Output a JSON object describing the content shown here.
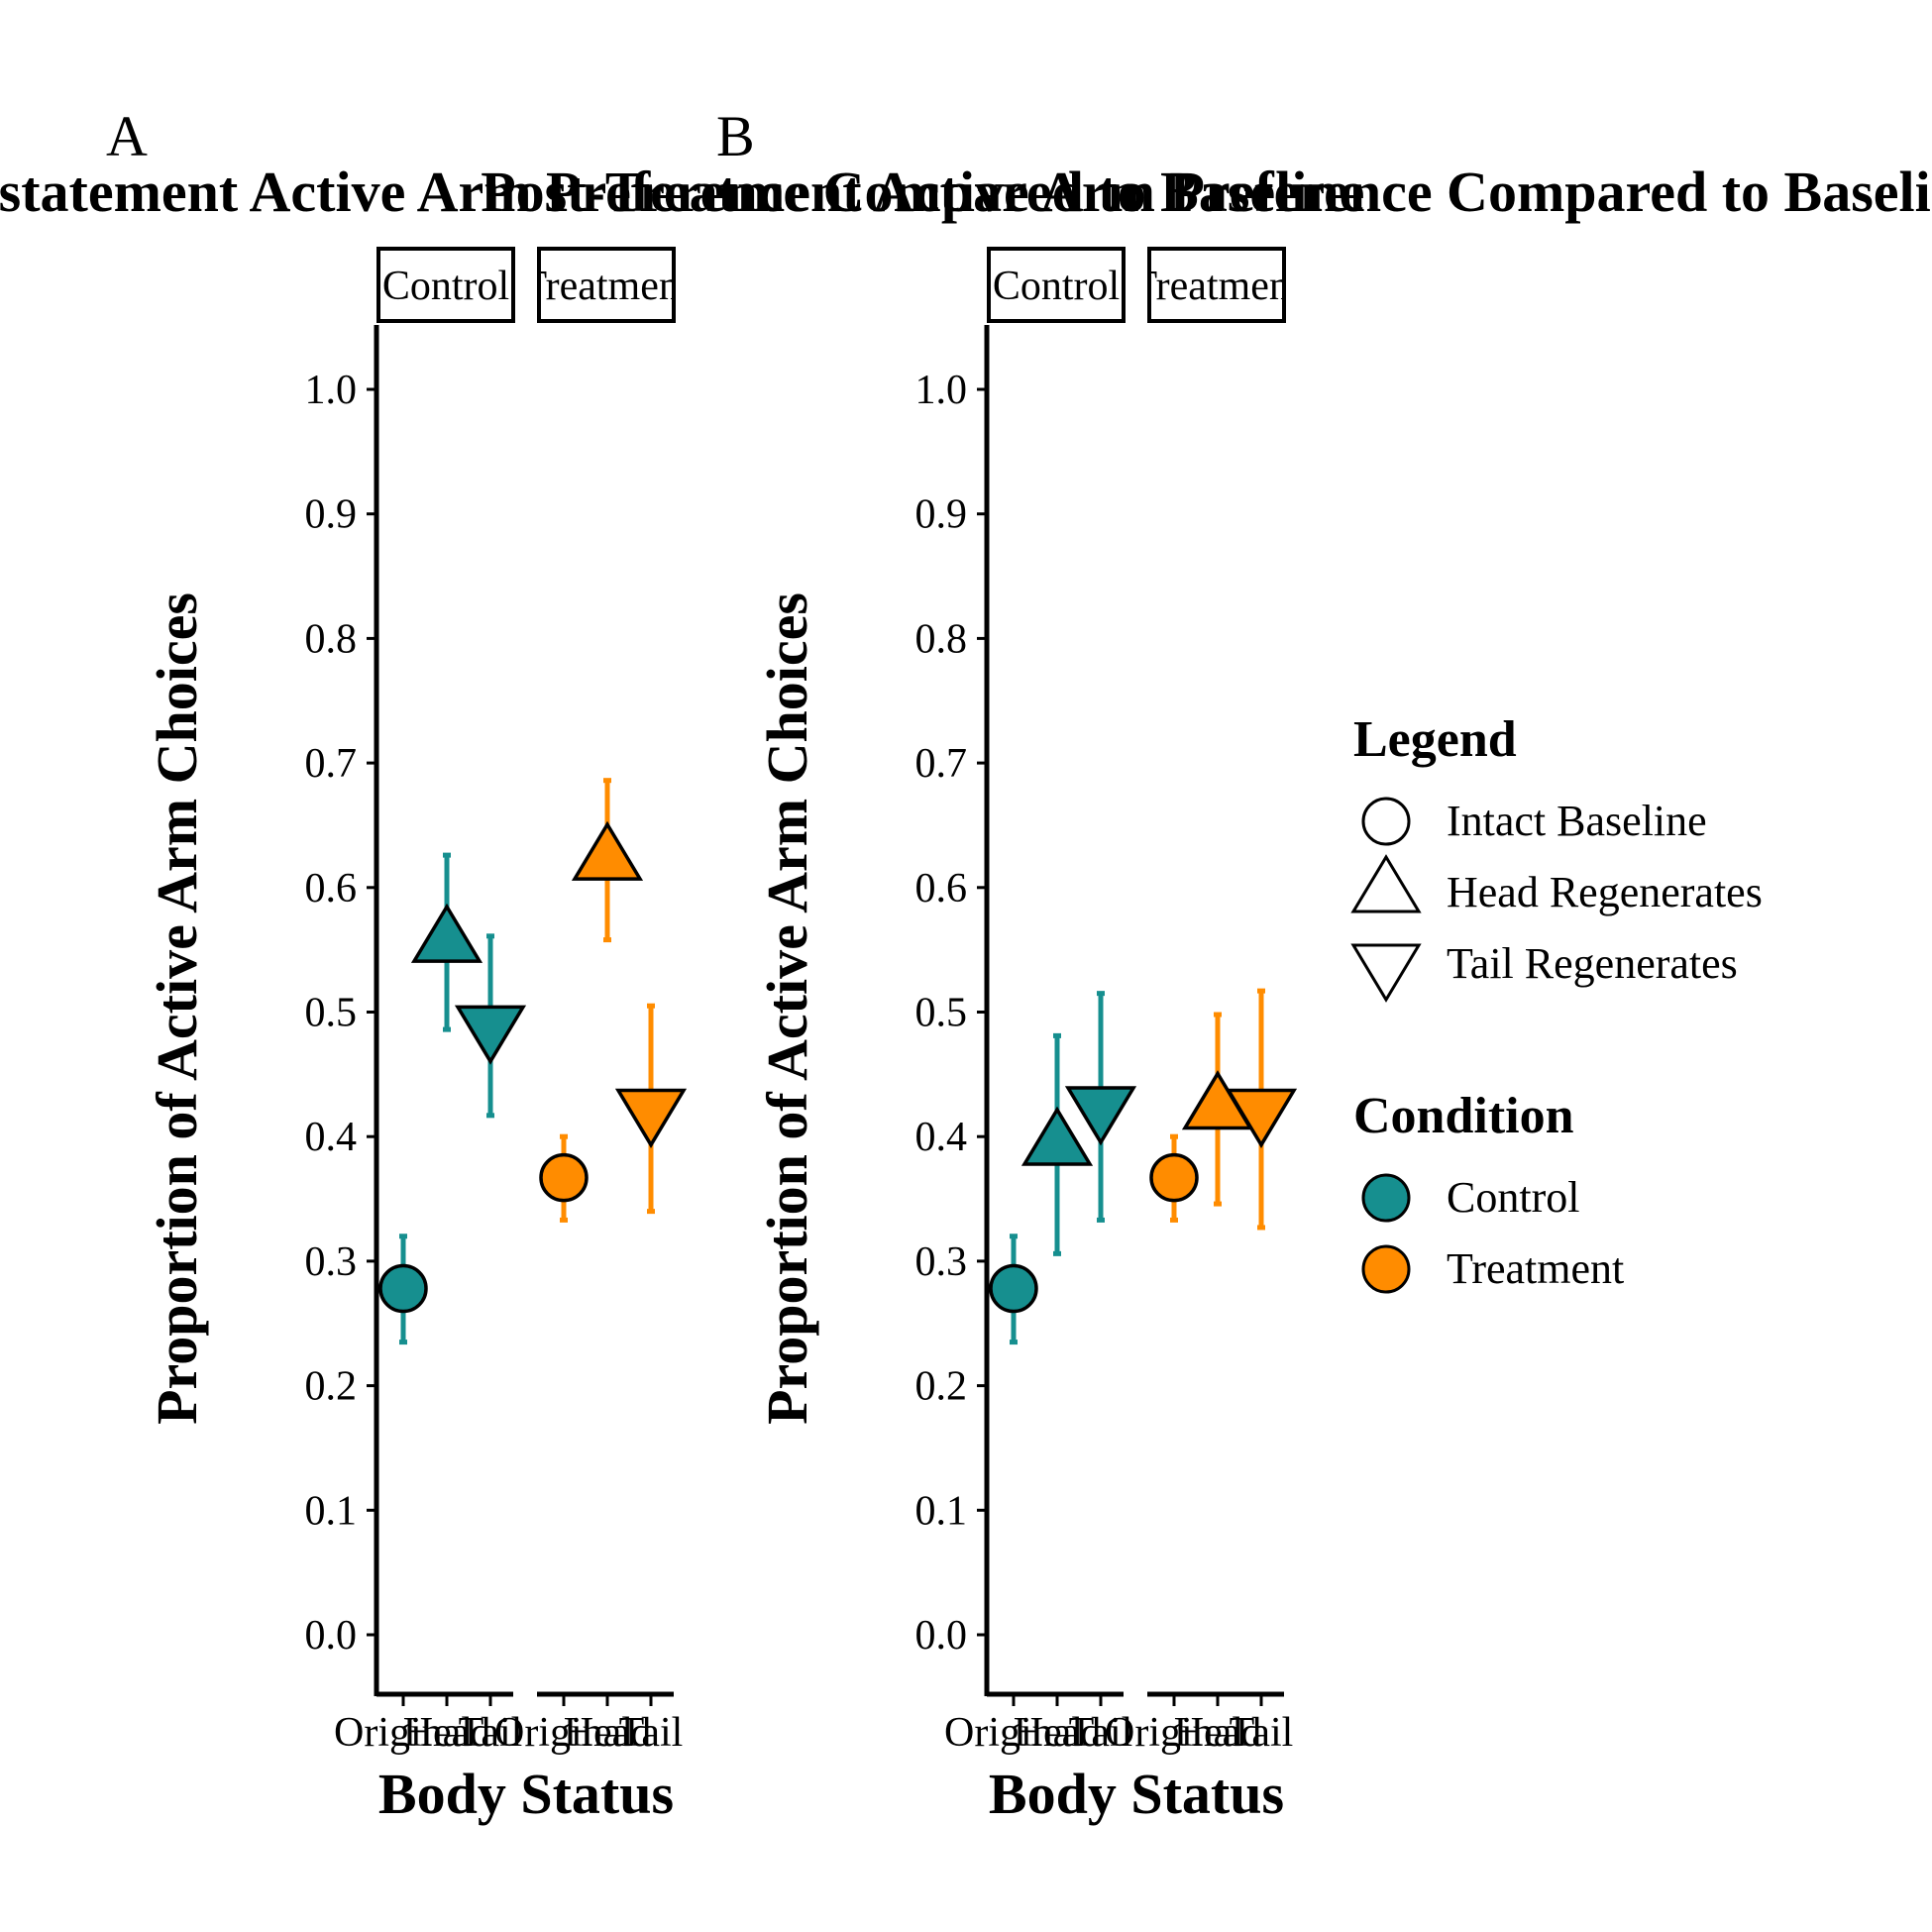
{
  "chart_data": [
    {
      "panel_label": "A",
      "type": "scatter",
      "title": "Reinstatement Active Arm Preference Compared to Baseline",
      "xlabel": "Body Status",
      "ylabel": "Proportion of Active Arm Choices",
      "ylim": [
        -0.05,
        1.05
      ],
      "yticks": [
        "0.0",
        "0.1",
        "0.2",
        "0.3",
        "0.4",
        "0.5",
        "0.6",
        "0.7",
        "0.8",
        "0.9",
        "1.0"
      ],
      "grid": false,
      "facets": [
        {
          "strip": "Control",
          "condition": "Control",
          "categories": [
            "Original",
            "Head",
            "Tail"
          ],
          "points": [
            {
              "x": "Original",
              "shape": "Intact Baseline",
              "y": 0.278,
              "lo": 0.235,
              "hi": 0.32
            },
            {
              "x": "Head",
              "shape": "Head Regenerates",
              "y": 0.556,
              "lo": 0.486,
              "hi": 0.626
            },
            {
              "x": "Tail",
              "shape": "Tail Regenerates",
              "y": 0.489,
              "lo": 0.417,
              "hi": 0.561
            }
          ]
        },
        {
          "strip": "Treatment",
          "condition": "Treatment",
          "categories": [
            "Original",
            "Head",
            "Tail"
          ],
          "points": [
            {
              "x": "Original",
              "shape": "Intact Baseline",
              "y": 0.367,
              "lo": 0.333,
              "hi": 0.4
            },
            {
              "x": "Head",
              "shape": "Head Regenerates",
              "y": 0.622,
              "lo": 0.558,
              "hi": 0.686
            },
            {
              "x": "Tail",
              "shape": "Tail Regenerates",
              "y": 0.422,
              "lo": 0.34,
              "hi": 0.505
            }
          ]
        }
      ]
    },
    {
      "panel_label": "B",
      "type": "scatter",
      "title": "Post-Treatment Active Arm Preference Compared to Baseline",
      "xlabel": "Body Status",
      "ylabel": "Proportion of Active Arm Choices",
      "ylim": [
        -0.05,
        1.05
      ],
      "yticks": [
        "0.0",
        "0.1",
        "0.2",
        "0.3",
        "0.4",
        "0.5",
        "0.6",
        "0.7",
        "0.8",
        "0.9",
        "1.0"
      ],
      "grid": false,
      "facets": [
        {
          "strip": "Control",
          "condition": "Control",
          "categories": [
            "Original",
            "Head",
            "Tail"
          ],
          "points": [
            {
              "x": "Original",
              "shape": "Intact Baseline",
              "y": 0.278,
              "lo": 0.235,
              "hi": 0.32
            },
            {
              "x": "Head",
              "shape": "Head Regenerates",
              "y": 0.393,
              "lo": 0.306,
              "hi": 0.481
            },
            {
              "x": "Tail",
              "shape": "Tail Regenerates",
              "y": 0.424,
              "lo": 0.333,
              "hi": 0.515
            }
          ]
        },
        {
          "strip": "Treatment",
          "condition": "Treatment",
          "categories": [
            "Original",
            "Head",
            "Tail"
          ],
          "points": [
            {
              "x": "Original",
              "shape": "Intact Baseline",
              "y": 0.367,
              "lo": 0.333,
              "hi": 0.4
            },
            {
              "x": "Head",
              "shape": "Head Regenerates",
              "y": 0.422,
              "lo": 0.346,
              "hi": 0.498
            },
            {
              "x": "Tail",
              "shape": "Tail Regenerates",
              "y": 0.422,
              "lo": 0.327,
              "hi": 0.517
            }
          ]
        }
      ]
    }
  ],
  "legend": {
    "placement": "right",
    "shape_title": "Legend",
    "shape_items": [
      {
        "label": "Intact Baseline",
        "shape": "circle"
      },
      {
        "label": "Head Regenerates",
        "shape": "triangle-up"
      },
      {
        "label": "Tail Regenerates",
        "shape": "triangle-down"
      }
    ],
    "color_title": "Condition",
    "color_items": [
      {
        "label": "Control",
        "color": "#168f8f"
      },
      {
        "label": "Treatment",
        "color": "#ff8c00"
      }
    ]
  },
  "colors": {
    "Control": "#168f8f",
    "Treatment": "#ff8c00",
    "outline": "#000000"
  }
}
